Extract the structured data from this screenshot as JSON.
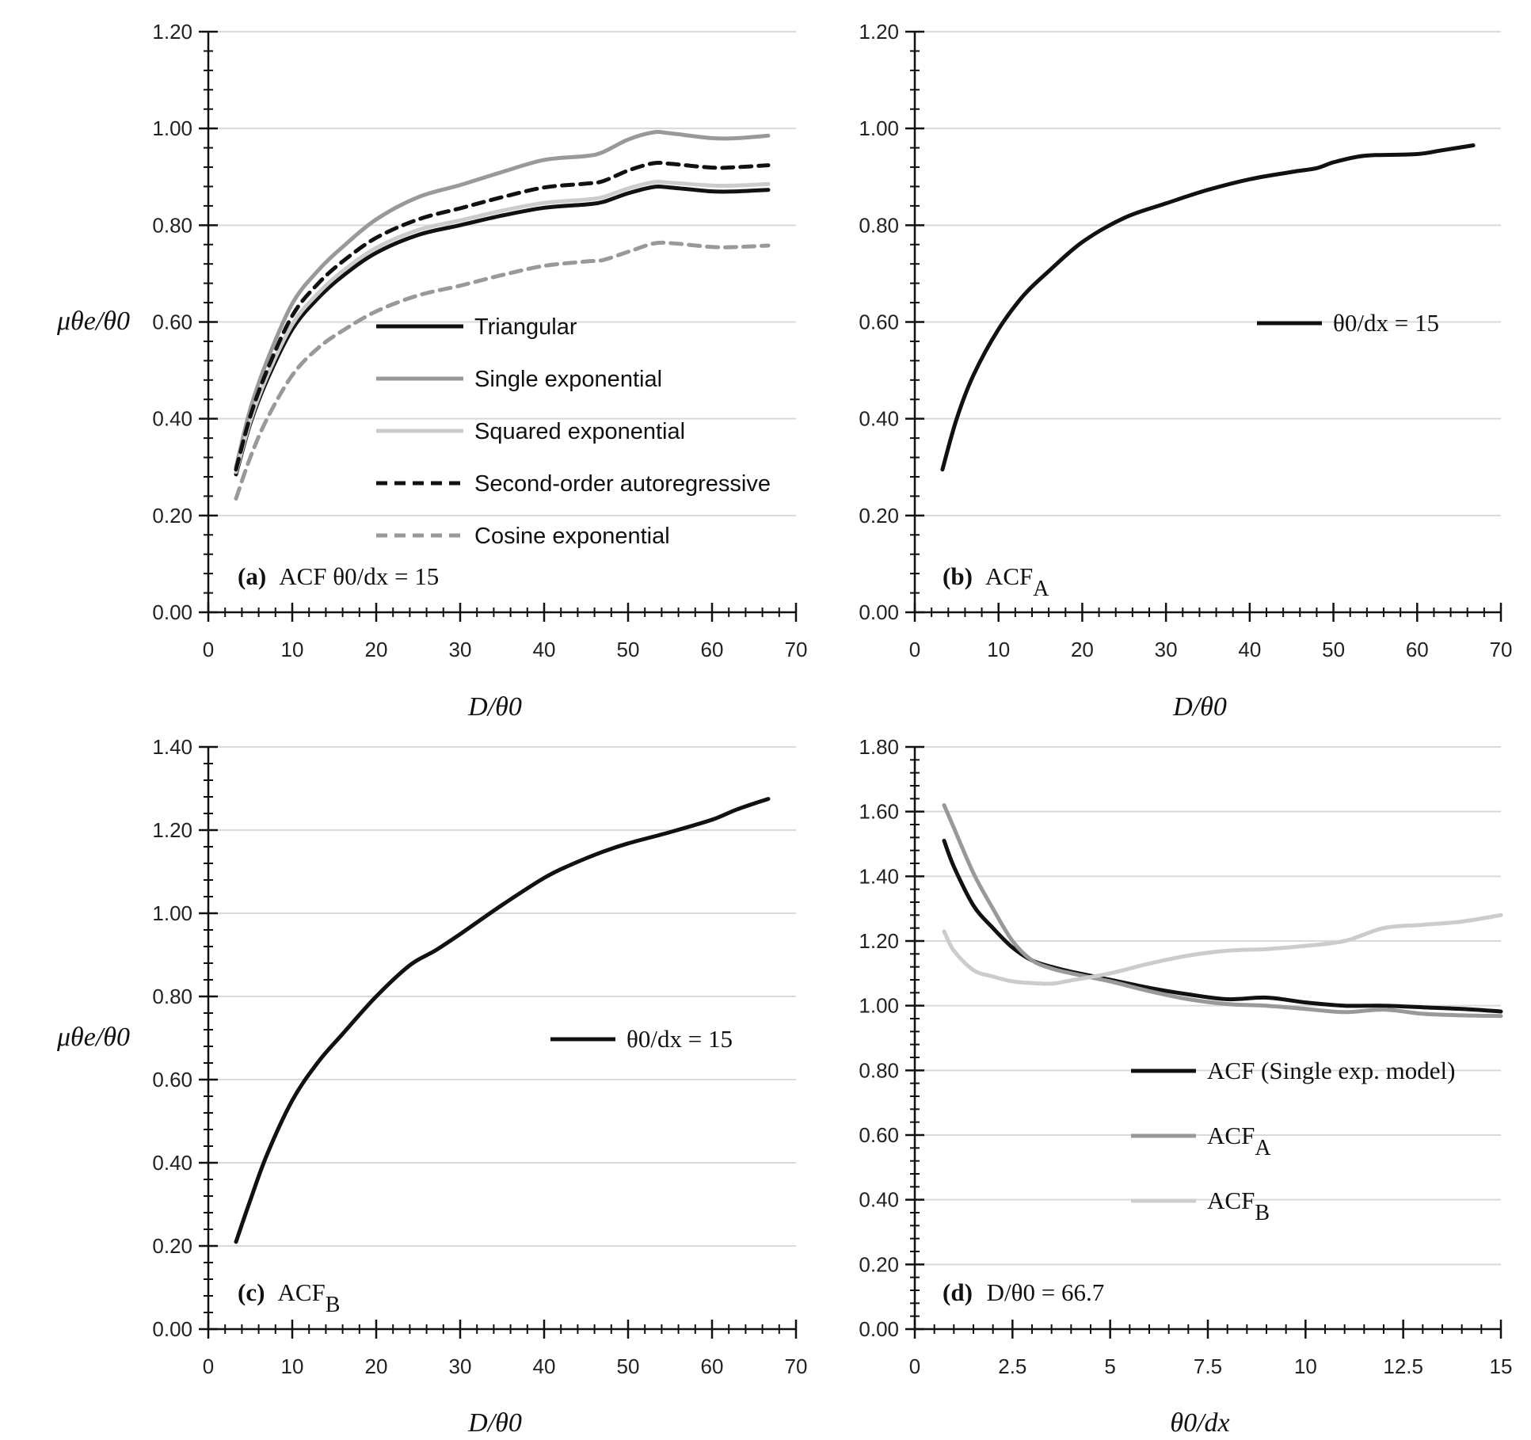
{
  "chart_data": [
    {
      "type": "line",
      "panel": "(a)",
      "annotation": {
        "tag": "(a)",
        "text": "ACF θ0/dx = 15"
      },
      "xlabel": "D/θ0",
      "ylabel": "μθe/θ0",
      "xlim": [
        0,
        70
      ],
      "ylim": [
        0,
        1.2
      ],
      "xticks": [
        "0",
        "10",
        "20",
        "30",
        "40",
        "50",
        "60",
        "70"
      ],
      "yticks": [
        "0.00",
        "0.20",
        "0.40",
        "0.60",
        "0.80",
        "1.00",
        "1.20"
      ],
      "grid": true,
      "legend_position": "center",
      "series": [
        {
          "name": "Triangular",
          "color": "#111111",
          "dash": "solid",
          "x": [
            3.3,
            5,
            7,
            10,
            13,
            16,
            20,
            25,
            30,
            35,
            40,
            45,
            47,
            50,
            53,
            55,
            60,
            63,
            66.7
          ],
          "y": [
            0.285,
            0.39,
            0.48,
            0.585,
            0.648,
            0.695,
            0.743,
            0.78,
            0.8,
            0.82,
            0.836,
            0.843,
            0.848,
            0.866,
            0.879,
            0.878,
            0.87,
            0.87,
            0.873
          ]
        },
        {
          "name": "Single exponential",
          "color": "#999999",
          "dash": "solid",
          "x": [
            3.3,
            5,
            7,
            10,
            13,
            16,
            20,
            25,
            30,
            35,
            40,
            45,
            47,
            50,
            53,
            55,
            60,
            63,
            66.7
          ],
          "y": [
            0.3,
            0.42,
            0.52,
            0.638,
            0.705,
            0.755,
            0.812,
            0.858,
            0.883,
            0.91,
            0.935,
            0.943,
            0.951,
            0.977,
            0.992,
            0.99,
            0.98,
            0.98,
            0.985
          ]
        },
        {
          "name": "Squared exponential",
          "color": "#cccccc",
          "dash": "solid",
          "x": [
            3.3,
            5,
            7,
            10,
            13,
            16,
            20,
            25,
            30,
            35,
            40,
            45,
            47,
            50,
            53,
            55,
            60,
            63,
            66.7
          ],
          "y": [
            0.29,
            0.395,
            0.488,
            0.595,
            0.658,
            0.705,
            0.753,
            0.79,
            0.81,
            0.83,
            0.846,
            0.853,
            0.858,
            0.876,
            0.889,
            0.888,
            0.882,
            0.882,
            0.885
          ]
        },
        {
          "name": "Second-order autoregressive",
          "color": "#111111",
          "dash": "dashed",
          "x": [
            3.3,
            5,
            7,
            10,
            13,
            16,
            20,
            25,
            30,
            35,
            40,
            45,
            47,
            50,
            53,
            55,
            60,
            63,
            66.7
          ],
          "y": [
            0.295,
            0.405,
            0.5,
            0.613,
            0.678,
            0.725,
            0.774,
            0.812,
            0.835,
            0.858,
            0.878,
            0.886,
            0.891,
            0.913,
            0.928,
            0.927,
            0.919,
            0.92,
            0.924
          ]
        },
        {
          "name": "Cosine exponential",
          "color": "#999999",
          "dash": "dashed",
          "x": [
            3.3,
            5,
            7,
            10,
            13,
            16,
            20,
            25,
            30,
            35,
            40,
            45,
            47,
            50,
            53,
            55,
            60,
            63,
            66.7
          ],
          "y": [
            0.235,
            0.32,
            0.4,
            0.49,
            0.545,
            0.582,
            0.622,
            0.655,
            0.675,
            0.697,
            0.716,
            0.725,
            0.728,
            0.745,
            0.762,
            0.763,
            0.755,
            0.755,
            0.758
          ]
        }
      ]
    },
    {
      "type": "line",
      "panel": "(b)",
      "annotation": {
        "tag": "(b)",
        "text": "ACF",
        "sub": "A"
      },
      "xlabel": "D/θ0",
      "ylabel": "",
      "xlim": [
        0,
        70
      ],
      "ylim": [
        0,
        1.2
      ],
      "xticks": [
        "0",
        "10",
        "20",
        "30",
        "40",
        "50",
        "60",
        "70"
      ],
      "yticks": [
        "0.00",
        "0.20",
        "0.40",
        "0.60",
        "0.80",
        "1.00",
        "1.20"
      ],
      "grid": true,
      "legend_position": "upper-right",
      "series": [
        {
          "name": "θ0/dx = 15",
          "color": "#111111",
          "dash": "solid",
          "x": [
            3.3,
            5,
            7,
            10,
            13,
            16,
            20,
            25,
            30,
            35,
            40,
            45,
            48,
            50,
            53,
            55,
            60,
            63,
            66.7
          ],
          "y": [
            0.295,
            0.4,
            0.49,
            0.585,
            0.655,
            0.705,
            0.765,
            0.815,
            0.845,
            0.873,
            0.895,
            0.91,
            0.918,
            0.93,
            0.942,
            0.945,
            0.947,
            0.955,
            0.965
          ]
        }
      ]
    },
    {
      "type": "line",
      "panel": "(c)",
      "annotation": {
        "tag": "(c)",
        "text": "ACF",
        "sub": "B"
      },
      "xlabel": "D/θ0",
      "ylabel": "μθe/θ0",
      "xlim": [
        0,
        70
      ],
      "ylim": [
        0,
        1.4
      ],
      "xticks": [
        "0",
        "10",
        "20",
        "30",
        "40",
        "50",
        "60",
        "70"
      ],
      "yticks": [
        "0.00",
        "0.20",
        "0.40",
        "0.60",
        "0.80",
        "1.00",
        "1.20",
        "1.40"
      ],
      "grid": true,
      "legend_position": "center-right",
      "series": [
        {
          "name": "θ0/dx = 15",
          "color": "#111111",
          "dash": "solid",
          "x": [
            3.3,
            5,
            7,
            10,
            13,
            16,
            20,
            24,
            27,
            30,
            35,
            40,
            43,
            47,
            50,
            55,
            60,
            63,
            66.7
          ],
          "y": [
            0.21,
            0.31,
            0.42,
            0.55,
            0.64,
            0.71,
            0.8,
            0.875,
            0.91,
            0.95,
            1.02,
            1.085,
            1.115,
            1.148,
            1.168,
            1.195,
            1.225,
            1.25,
            1.275
          ]
        }
      ]
    },
    {
      "type": "line",
      "panel": "(d)",
      "annotation": {
        "tag": "(d)",
        "text": "D/θ0 = 66.7"
      },
      "xlabel": "θ0/dx",
      "ylabel": "",
      "xlim": [
        0,
        15
      ],
      "ylim": [
        0,
        1.8
      ],
      "xticks": [
        "0",
        "2.5",
        "5",
        "7.5",
        "10",
        "12.5",
        "15"
      ],
      "yticks": [
        "0.00",
        "0.20",
        "0.40",
        "0.60",
        "0.80",
        "1.00",
        "1.20",
        "1.40",
        "1.60",
        "1.80"
      ],
      "grid": true,
      "legend_position": "center-right",
      "series": [
        {
          "name": "ACF (Single exp. model)",
          "color": "#111111",
          "dash": "solid",
          "x": [
            0.75,
            1,
            1.5,
            2,
            2.5,
            3,
            3.5,
            4,
            5,
            6,
            7,
            8,
            9,
            10,
            11,
            12,
            13,
            14,
            15
          ],
          "y": [
            1.51,
            1.43,
            1.31,
            1.24,
            1.18,
            1.14,
            1.12,
            1.105,
            1.08,
            1.055,
            1.035,
            1.02,
            1.025,
            1.01,
            1.0,
            1.0,
            0.995,
            0.99,
            0.982
          ]
        },
        {
          "name": "ACF",
          "sub": "A",
          "color": "#999999",
          "dash": "solid",
          "x": [
            0.75,
            1,
            1.5,
            2,
            2.5,
            3,
            3.5,
            4,
            5,
            6,
            7,
            8,
            9,
            10,
            11,
            12,
            13,
            14,
            15
          ],
          "y": [
            1.62,
            1.55,
            1.41,
            1.3,
            1.2,
            1.14,
            1.115,
            1.1,
            1.075,
            1.045,
            1.02,
            1.005,
            1.0,
            0.99,
            0.98,
            0.988,
            0.975,
            0.97,
            0.968
          ]
        },
        {
          "name": "ACF",
          "sub": "B",
          "color": "#cccccc",
          "dash": "solid",
          "x": [
            0.75,
            1,
            1.5,
            2,
            2.5,
            3,
            3.5,
            4,
            5,
            6,
            7,
            8,
            9,
            10,
            11,
            12,
            13,
            14,
            15
          ],
          "y": [
            1.23,
            1.17,
            1.11,
            1.09,
            1.075,
            1.07,
            1.068,
            1.078,
            1.1,
            1.13,
            1.155,
            1.17,
            1.175,
            1.185,
            1.2,
            1.24,
            1.25,
            1.26,
            1.28
          ]
        }
      ]
    }
  ]
}
